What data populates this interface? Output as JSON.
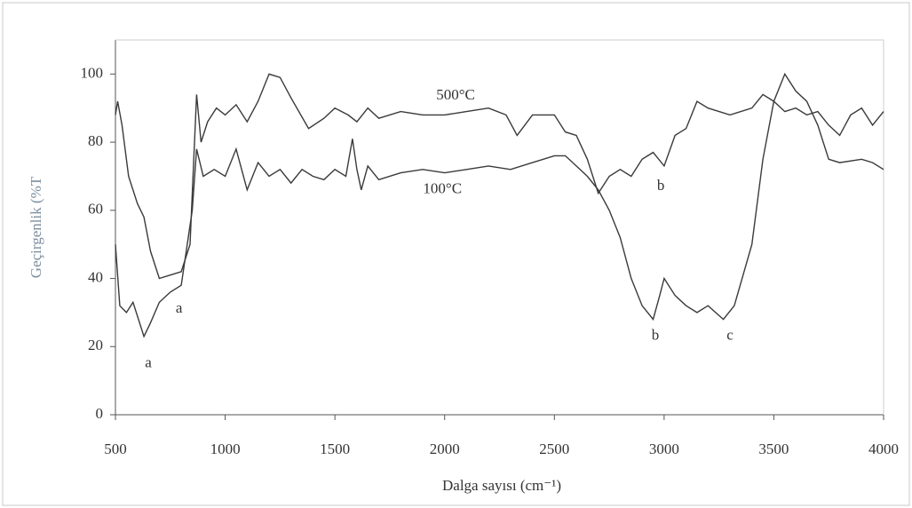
{
  "chart_data": {
    "type": "line",
    "xlabel": "Dalga sayısı (cm⁻¹)",
    "ylabel": "Geçirgenlik (%T",
    "xlim": [
      500,
      4000
    ],
    "xticks": [
      500,
      1000,
      1500,
      2000,
      2500,
      3000,
      3500,
      4000
    ],
    "ylim": [
      0,
      110
    ],
    "yticks": [
      0,
      20,
      40,
      60,
      80,
      100
    ],
    "series": [
      {
        "name": "500°C",
        "color": "#3a3a3a",
        "x": [
          500,
          510,
          530,
          560,
          600,
          630,
          660,
          700,
          750,
          800,
          840,
          870,
          890,
          920,
          960,
          1000,
          1050,
          1100,
          1150,
          1200,
          1250,
          1300,
          1380,
          1450,
          1500,
          1560,
          1600,
          1650,
          1700,
          1800,
          1900,
          2000,
          2100,
          2200,
          2280,
          2330,
          2400,
          2500,
          2550,
          2600,
          2650,
          2700,
          2750,
          2800,
          2850,
          2900,
          2950,
          3000,
          3050,
          3100,
          3150,
          3200,
          3300,
          3400,
          3450,
          3500,
          3550,
          3600,
          3650,
          3700,
          3750,
          3800,
          3850,
          3900,
          3950,
          4000
        ],
        "values": [
          88,
          92,
          85,
          70,
          62,
          58,
          48,
          40,
          41,
          42,
          50,
          94,
          80,
          86,
          90,
          88,
          91,
          86,
          92,
          100,
          99,
          93,
          84,
          87,
          90,
          88,
          86,
          90,
          87,
          89,
          88,
          88,
          89,
          90,
          88,
          82,
          88,
          88,
          83,
          82,
          75,
          65,
          70,
          72,
          70,
          75,
          77,
          73,
          82,
          84,
          92,
          90,
          88,
          90,
          94,
          92,
          89,
          90,
          88,
          89,
          85,
          82,
          88,
          90,
          85,
          89
        ]
      },
      {
        "name": "100°C",
        "color": "#3a3a3a",
        "x": [
          500,
          520,
          550,
          580,
          630,
          660,
          700,
          750,
          800,
          850,
          870,
          900,
          950,
          1000,
          1050,
          1100,
          1150,
          1200,
          1250,
          1300,
          1350,
          1400,
          1450,
          1500,
          1550,
          1580,
          1600,
          1620,
          1650,
          1700,
          1800,
          1900,
          2000,
          2100,
          2200,
          2300,
          2400,
          2500,
          2550,
          2600,
          2650,
          2700,
          2750,
          2800,
          2850,
          2900,
          2950,
          2980,
          3000,
          3050,
          3100,
          3150,
          3200,
          3270,
          3320,
          3400,
          3450,
          3500,
          3550,
          3600,
          3650,
          3700,
          3750,
          3800,
          3900,
          3950,
          4000
        ],
        "values": [
          50,
          32,
          30,
          33,
          23,
          27,
          33,
          36,
          38,
          60,
          78,
          70,
          72,
          70,
          78,
          66,
          74,
          70,
          72,
          68,
          72,
          70,
          69,
          72,
          70,
          81,
          72,
          66,
          73,
          69,
          71,
          72,
          71,
          72,
          73,
          72,
          74,
          76,
          76,
          73,
          70,
          66,
          60,
          52,
          40,
          32,
          28,
          35,
          40,
          35,
          32,
          30,
          32,
          28,
          32,
          50,
          75,
          92,
          100,
          95,
          92,
          85,
          75,
          74,
          75,
          74,
          72
        ]
      }
    ],
    "annotations": [
      {
        "text": "500°C",
        "x": 2050,
        "y": 93.5
      },
      {
        "text": "100°C",
        "x": 1990,
        "y": 66
      },
      {
        "text": "a",
        "x": 650,
        "y": 15
      },
      {
        "text": "a",
        "x": 790,
        "y": 31
      },
      {
        "text": "b",
        "x": 2960,
        "y": 23
      },
      {
        "text": "c",
        "x": 3300,
        "y": 23
      },
      {
        "text": "b",
        "x": 2985,
        "y": 67
      }
    ]
  }
}
